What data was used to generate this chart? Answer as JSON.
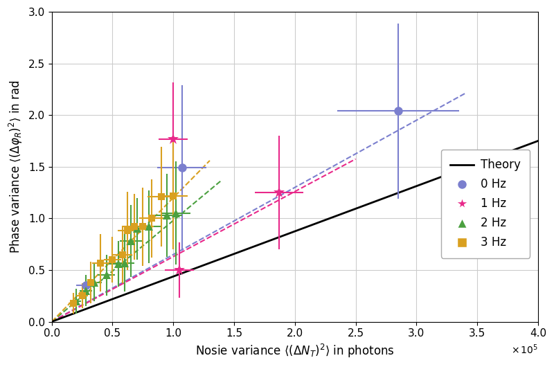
{
  "xlabel": "Nosie variance $\\langle(\\Delta N_T)^2\\rangle$ in photons",
  "ylabel": "Phase variance $\\langle(\\Delta\\varphi_R)^2\\rangle$ in rad",
  "xlim": [
    0,
    400000.0
  ],
  "ylim": [
    0.0,
    3.0
  ],
  "xticks": [
    0,
    50000,
    100000,
    150000,
    200000,
    250000,
    300000,
    350000,
    400000
  ],
  "yticks": [
    0.0,
    0.5,
    1.0,
    1.5,
    2.0,
    2.5,
    3.0
  ],
  "theory_slope": 4.375e-06,
  "colors": {
    "0hz": "#7b7fce",
    "1hz": "#e8298a",
    "2hz": "#4ba040",
    "3hz": "#d9a020"
  },
  "data_0hz": {
    "x": [
      28000,
      107000,
      285000
    ],
    "y": [
      0.35,
      1.49,
      2.04
    ],
    "xerr": [
      8000,
      20000,
      50000
    ],
    "yerr": [
      0.08,
      0.8,
      0.85
    ],
    "fit_x_end": 340000,
    "fit_slope": 6.5e-06
  },
  "data_1hz": {
    "x": [
      100000,
      105000,
      187000
    ],
    "y": [
      1.77,
      0.5,
      1.25
    ],
    "xerr": [
      12000,
      12000,
      20000
    ],
    "yerr": [
      0.55,
      0.27,
      0.55
    ],
    "fit_x_end": 250000,
    "fit_slope": 6.3e-06
  },
  "data_2hz": {
    "x": [
      20000,
      28000,
      35000,
      45000,
      55000,
      60000,
      65000,
      70000,
      80000,
      95000,
      102000
    ],
    "y": [
      0.2,
      0.3,
      0.38,
      0.45,
      0.56,
      0.57,
      0.78,
      0.9,
      0.92,
      1.03,
      1.05
    ],
    "xerr": [
      4000,
      5000,
      6000,
      7000,
      8000,
      8000,
      9000,
      9000,
      10000,
      12000,
      12000
    ],
    "yerr": [
      0.12,
      0.15,
      0.18,
      0.2,
      0.22,
      0.28,
      0.35,
      0.3,
      0.35,
      0.4,
      0.5
    ],
    "fit_x_end": 140000,
    "fit_slope": 9.8e-06
  },
  "data_3hz": {
    "x": [
      18000,
      25000,
      32000,
      40000,
      50000,
      58000,
      62000,
      68000,
      75000,
      82000,
      90000,
      100000
    ],
    "y": [
      0.18,
      0.25,
      0.38,
      0.57,
      0.6,
      0.65,
      0.88,
      0.92,
      0.92,
      1.0,
      1.21,
      1.22
    ],
    "xerr": [
      4000,
      5000,
      5000,
      7000,
      7000,
      8000,
      8000,
      9000,
      9000,
      10000,
      11000,
      12000
    ],
    "yerr": [
      0.1,
      0.12,
      0.2,
      0.28,
      0.22,
      0.28,
      0.38,
      0.32,
      0.38,
      0.38,
      0.48,
      0.52
    ],
    "fit_x_end": 130000,
    "fit_slope": 1.2e-05
  },
  "background_color": "#ffffff",
  "grid_color": "#cccccc"
}
